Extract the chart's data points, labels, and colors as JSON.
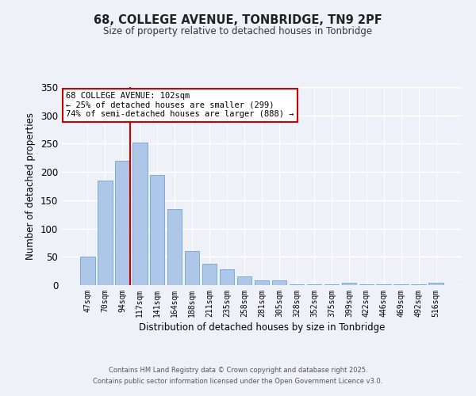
{
  "title": "68, COLLEGE AVENUE, TONBRIDGE, TN9 2PF",
  "subtitle": "Size of property relative to detached houses in Tonbridge",
  "xlabel": "Distribution of detached houses by size in Tonbridge",
  "ylabel": "Number of detached properties",
  "categories": [
    "47sqm",
    "70sqm",
    "94sqm",
    "117sqm",
    "141sqm",
    "164sqm",
    "188sqm",
    "211sqm",
    "235sqm",
    "258sqm",
    "281sqm",
    "305sqm",
    "328sqm",
    "352sqm",
    "375sqm",
    "399sqm",
    "422sqm",
    "446sqm",
    "469sqm",
    "492sqm",
    "516sqm"
  ],
  "values": [
    50,
    185,
    220,
    252,
    195,
    135,
    60,
    38,
    28,
    16,
    9,
    8,
    2,
    2,
    1,
    4,
    1,
    1,
    1,
    1,
    4
  ],
  "bar_color": "#aec6e8",
  "bar_edge_color": "#7aadd4",
  "ylim": [
    0,
    350
  ],
  "yticks": [
    0,
    50,
    100,
    150,
    200,
    250,
    300,
    350
  ],
  "vline_pos": 2.43,
  "vline_color": "#cc0000",
  "annotation_title": "68 COLLEGE AVENUE: 102sqm",
  "annotation_line1": "← 25% of detached houses are smaller (299)",
  "annotation_line2": "74% of semi-detached houses are larger (888) →",
  "annotation_box_color": "#ffffff",
  "annotation_box_edge": "#cc0000",
  "footer1": "Contains HM Land Registry data © Crown copyright and database right 2025.",
  "footer2": "Contains public sector information licensed under the Open Government Licence v3.0.",
  "background_color": "#eef2f8",
  "grid_color": "#ffffff"
}
